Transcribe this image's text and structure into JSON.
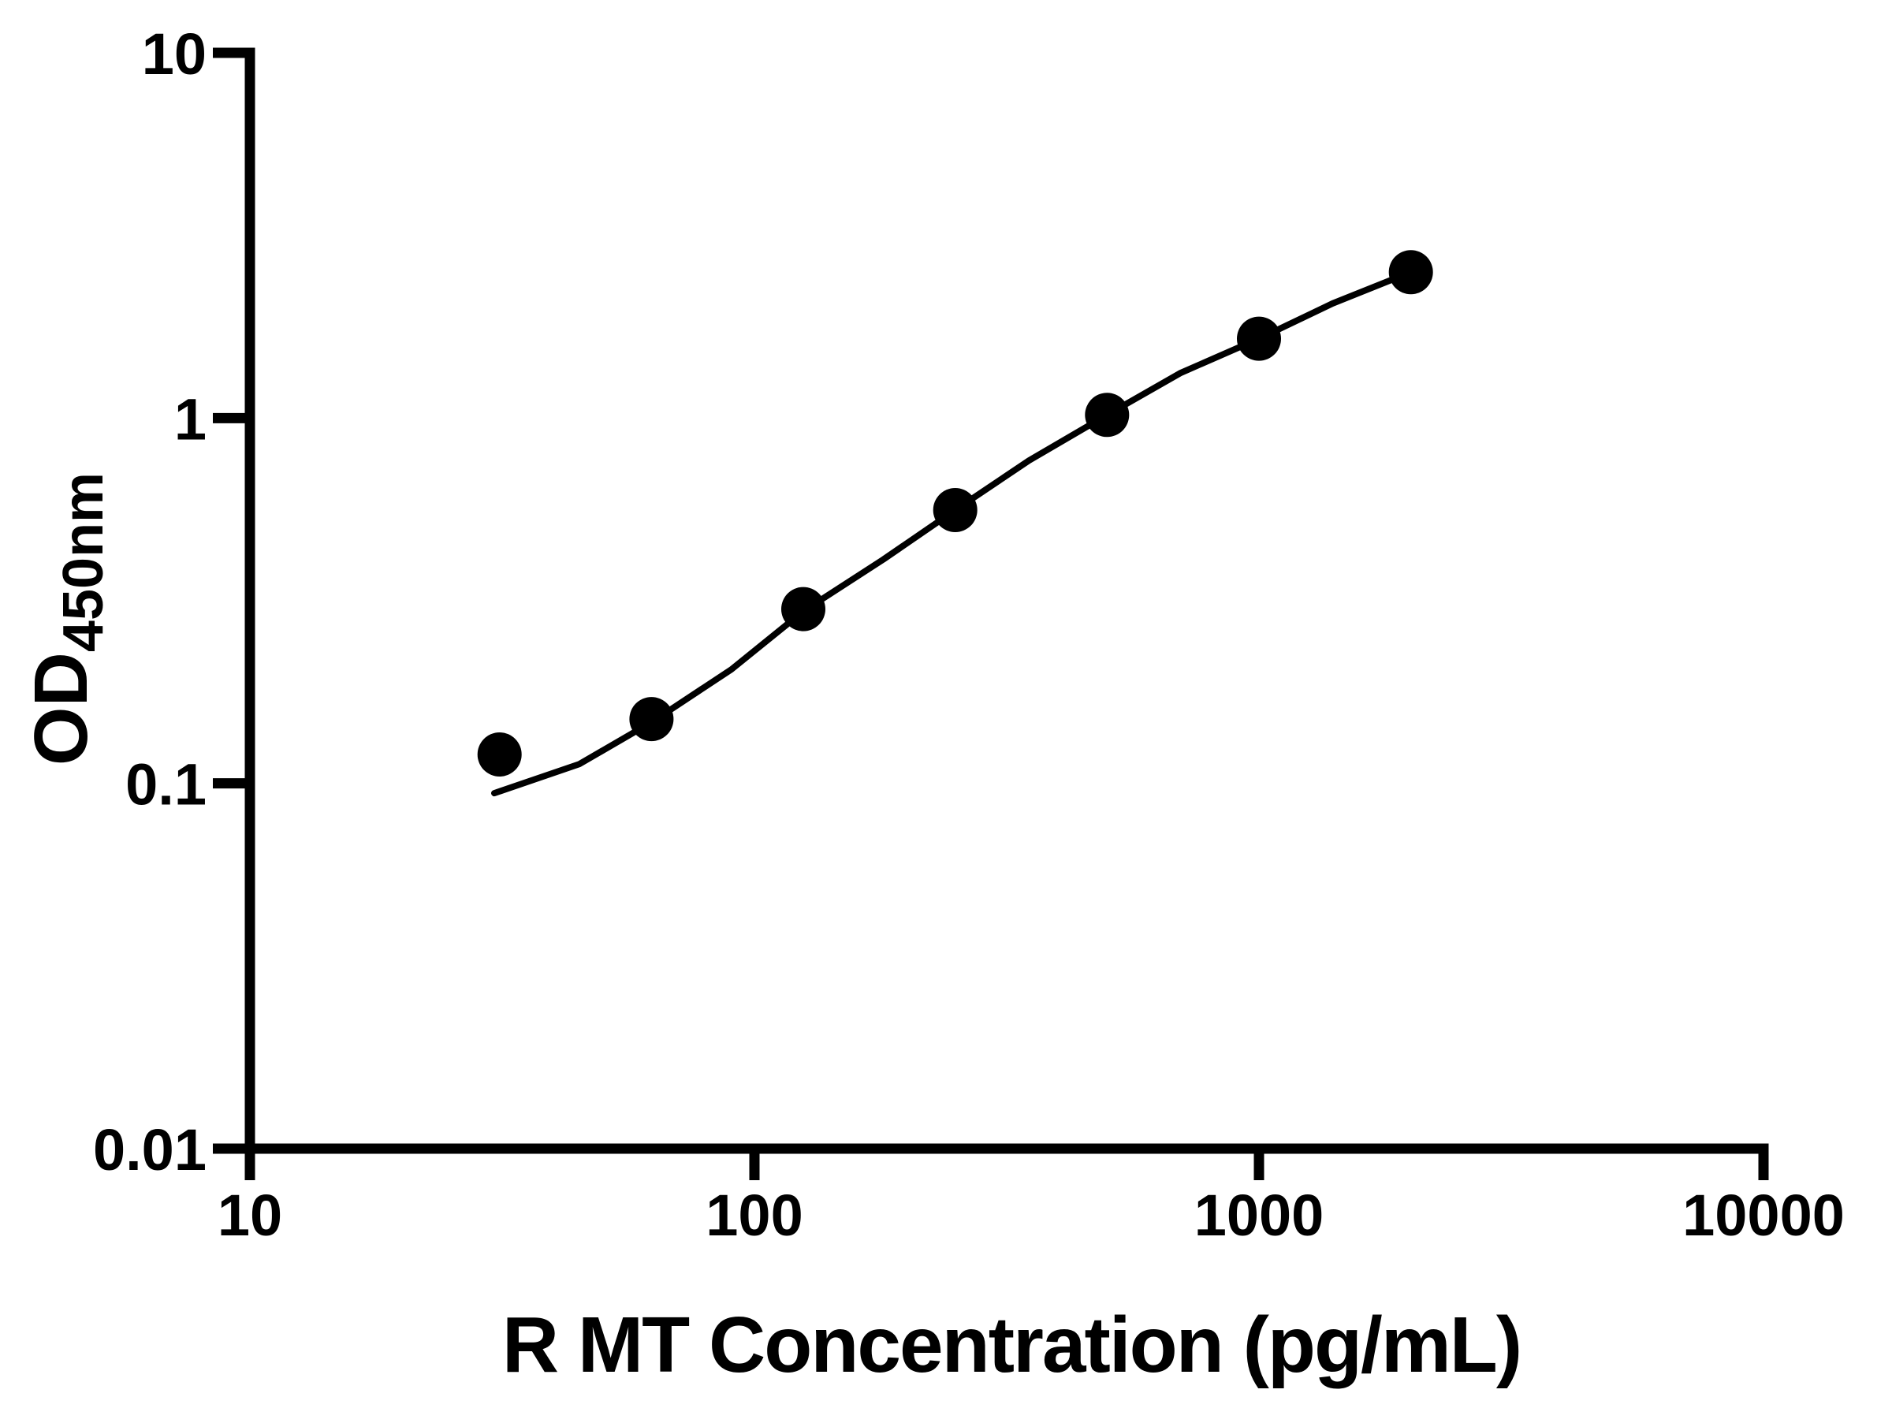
{
  "figure": {
    "background_color": "#ffffff",
    "ink_color": "#000000"
  },
  "chart_data": {
    "type": "scatter",
    "title": "",
    "xlabel": "R MT Concentration (pg/mL)",
    "ylabel": {
      "main": "OD",
      "subscript": "450nm"
    },
    "x_scale": "log",
    "y_scale": "log",
    "xlim": [
      10,
      10000
    ],
    "ylim": [
      0.01,
      10
    ],
    "grid": false,
    "legend": null,
    "x_ticks": [
      {
        "value": 10,
        "label": "10"
      },
      {
        "value": 100,
        "label": "100"
      },
      {
        "value": 1000,
        "label": "1000"
      },
      {
        "value": 10000,
        "label": "10000"
      }
    ],
    "y_ticks": [
      {
        "value": 10,
        "label": "10"
      },
      {
        "value": 1,
        "label": "1"
      },
      {
        "value": 0.1,
        "label": "0.1"
      },
      {
        "value": 0.01,
        "label": "0.01"
      }
    ],
    "series": [
      {
        "name": "standard-curve-points",
        "marker": "filled-circle",
        "color": "#000000",
        "points": [
          {
            "x": 31.25,
            "y": 0.12
          },
          {
            "x": 62.5,
            "y": 0.15
          },
          {
            "x": 125,
            "y": 0.3
          },
          {
            "x": 250,
            "y": 0.56
          },
          {
            "x": 500,
            "y": 1.02
          },
          {
            "x": 1000,
            "y": 1.65
          },
          {
            "x": 2000,
            "y": 2.51
          }
        ]
      }
    ],
    "fit_curve": {
      "name": "four-parameter-logistic-fit",
      "color": "#000000",
      "points": [
        [
          30.5,
          0.094
        ],
        [
          45,
          0.113
        ],
        [
          62.5,
          0.147
        ],
        [
          90,
          0.205
        ],
        [
          125,
          0.296
        ],
        [
          180,
          0.41
        ],
        [
          250,
          0.56
        ],
        [
          350,
          0.765
        ],
        [
          500,
          1.02
        ],
        [
          700,
          1.33
        ],
        [
          1000,
          1.65
        ],
        [
          1400,
          2.06
        ],
        [
          2000,
          2.51
        ]
      ]
    }
  }
}
